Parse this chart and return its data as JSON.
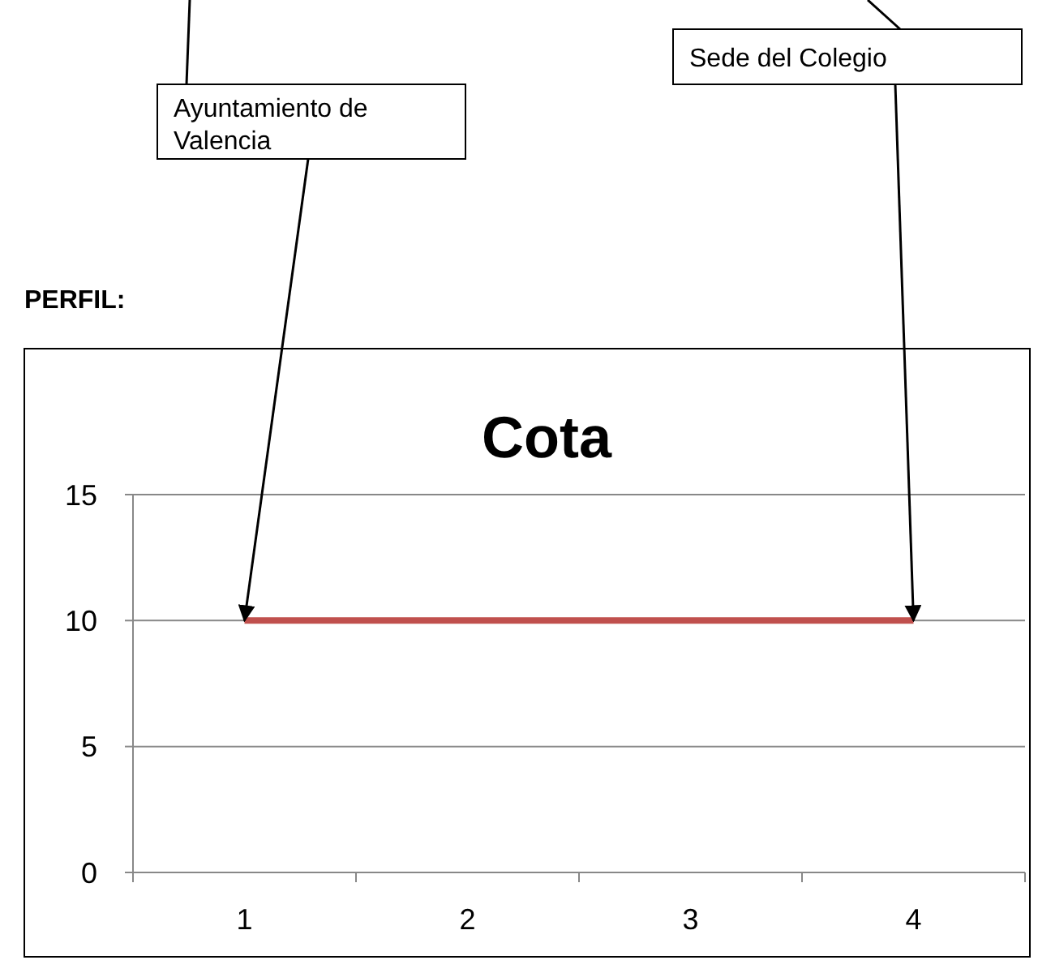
{
  "chart_data": {
    "type": "line",
    "title": "Cota",
    "categories": [
      "1",
      "2",
      "3",
      "4"
    ],
    "series": [
      {
        "color": "#c0504d",
        "values": [
          10,
          10,
          10,
          10
        ]
      }
    ],
    "ylim": [
      0,
      15
    ],
    "yticks": [
      0,
      5,
      10,
      15
    ],
    "grid": "y",
    "marker": "none",
    "line_style": "solid",
    "annotations": [
      "PERFIL:",
      {
        "text": "Ayuntamiento de Valencia",
        "x": "1",
        "y": 10
      },
      {
        "text": "Sede del Colegio",
        "x": "4",
        "y": 10
      }
    ]
  }
}
